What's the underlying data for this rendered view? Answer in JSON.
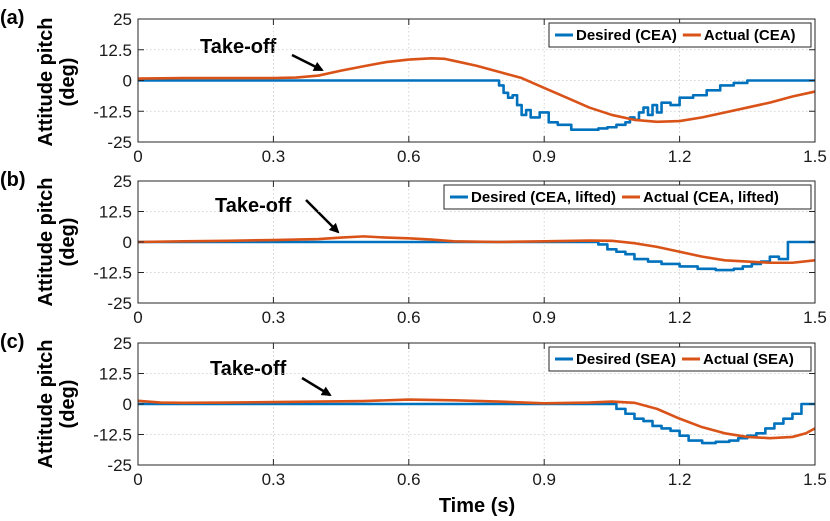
{
  "chart_data": [
    {
      "type": "line",
      "panel_label": "(a)",
      "annotation": "Take-off",
      "ylabel_line1": "Attitude pitch",
      "ylabel_line2": "(deg)",
      "xlabel": "",
      "xlim": [
        0,
        1.5
      ],
      "ylim": [
        -25,
        25
      ],
      "xticks": [
        "0",
        "0.3",
        "0.6",
        "0.9",
        "1.2",
        "1.5"
      ],
      "yticks": [
        "25",
        "12.5",
        "0",
        "-12.5",
        "-25"
      ],
      "grid": true,
      "legend_position": "top-right",
      "series": [
        {
          "name": "Desired (CEA)",
          "color": "#0072BD",
          "style": "step",
          "x": [
            0,
            0.78,
            0.8,
            0.81,
            0.82,
            0.83,
            0.84,
            0.85,
            0.86,
            0.87,
            0.89,
            0.91,
            0.93,
            0.96,
            1.02,
            1.04,
            1.06,
            1.08,
            1.09,
            1.1,
            1.11,
            1.12,
            1.13,
            1.14,
            1.15,
            1.16,
            1.18,
            1.2,
            1.23,
            1.26,
            1.29,
            1.32,
            1.35,
            1.5
          ],
          "y": [
            0,
            0,
            -2,
            -5,
            -7,
            -6,
            -10,
            -14,
            -12,
            -15,
            -13,
            -17,
            -18,
            -20,
            -19.5,
            -19,
            -18,
            -17,
            -15,
            -16,
            -13,
            -11,
            -14,
            -10,
            -13,
            -9,
            -10,
            -7,
            -6,
            -4,
            -2,
            -1,
            0,
            0
          ]
        },
        {
          "name": "Actual (CEA)",
          "color": "#D95319",
          "x": [
            0,
            0.1,
            0.2,
            0.3,
            0.35,
            0.4,
            0.45,
            0.5,
            0.55,
            0.6,
            0.65,
            0.68,
            0.7,
            0.75,
            0.8,
            0.85,
            0.9,
            0.95,
            1.0,
            1.05,
            1.1,
            1.15,
            1.2,
            1.25,
            1.3,
            1.35,
            1.4,
            1.45,
            1.5
          ],
          "y": [
            0.8,
            1,
            1,
            1,
            1.2,
            2,
            4,
            5.8,
            7.5,
            8.5,
            9,
            8.8,
            8,
            6,
            3.5,
            1,
            -3,
            -7,
            -11,
            -14,
            -16,
            -16.8,
            -16.5,
            -15,
            -13,
            -11,
            -9,
            -6.5,
            -4.5
          ]
        }
      ]
    },
    {
      "type": "line",
      "panel_label": "(b)",
      "annotation": "Take-off",
      "ylabel_line1": "Attitude pitch",
      "ylabel_line2": "(deg)",
      "xlabel": "",
      "xlim": [
        0,
        1.5
      ],
      "ylim": [
        -25,
        25
      ],
      "xticks": [
        "0",
        "0.3",
        "0.6",
        "0.9",
        "1.2",
        "1.5"
      ],
      "yticks": [
        "25",
        "12.5",
        "0",
        "-12.5",
        "-25"
      ],
      "grid": true,
      "legend_position": "top-right",
      "series": [
        {
          "name": "Desired (CEA, lifted)",
          "color": "#0072BD",
          "style": "step",
          "x": [
            0,
            1.0,
            1.02,
            1.04,
            1.06,
            1.08,
            1.1,
            1.13,
            1.16,
            1.2,
            1.24,
            1.28,
            1.32,
            1.34,
            1.36,
            1.38,
            1.4,
            1.42,
            1.44,
            1.5
          ],
          "y": [
            0,
            0,
            -1,
            -3,
            -4,
            -5,
            -7,
            -8,
            -9,
            -10,
            -11,
            -11.5,
            -11,
            -10,
            -9,
            -8,
            -6,
            -7,
            0,
            0
          ]
        },
        {
          "name": "Actual (CEA, lifted)",
          "color": "#D95319",
          "x": [
            0,
            0.1,
            0.2,
            0.3,
            0.4,
            0.45,
            0.5,
            0.55,
            0.6,
            0.65,
            0.7,
            0.8,
            0.9,
            1.0,
            1.05,
            1.1,
            1.15,
            1.2,
            1.25,
            1.3,
            1.35,
            1.4,
            1.45,
            1.5
          ],
          "y": [
            0,
            0.3,
            0.5,
            0.8,
            1.2,
            1.8,
            2.3,
            1.8,
            1.5,
            1,
            0.3,
            0,
            0.3,
            0.6,
            0.5,
            -0.5,
            -2,
            -4,
            -6,
            -7.5,
            -8,
            -8.5,
            -8.5,
            -7.5
          ]
        }
      ]
    },
    {
      "type": "line",
      "panel_label": "(c)",
      "annotation": "Take-off",
      "ylabel_line1": "Attitude pitch",
      "ylabel_line2": "(deg)",
      "xlabel": "Time (s)",
      "xlim": [
        0,
        1.5
      ],
      "ylim": [
        -25,
        25
      ],
      "xticks": [
        "0",
        "0.3",
        "0.6",
        "0.9",
        "1.2",
        "1.5"
      ],
      "yticks": [
        "25",
        "12.5",
        "0",
        "-12.5",
        "-25"
      ],
      "grid": true,
      "legend_position": "top-right",
      "series": [
        {
          "name": "Desired (SEA)",
          "color": "#0072BD",
          "style": "step",
          "x": [
            0,
            1.04,
            1.06,
            1.08,
            1.1,
            1.12,
            1.14,
            1.16,
            1.18,
            1.2,
            1.22,
            1.25,
            1.28,
            1.31,
            1.33,
            1.35,
            1.37,
            1.39,
            1.41,
            1.43,
            1.45,
            1.47,
            1.5
          ],
          "y": [
            0,
            0,
            -2,
            -4,
            -6,
            -7,
            -9,
            -10,
            -11,
            -13,
            -15,
            -16,
            -15.5,
            -15,
            -14,
            -13,
            -12,
            -10,
            -8,
            -6,
            -4,
            0,
            0
          ]
        },
        {
          "name": "Actual (SEA)",
          "color": "#D95319",
          "x": [
            0,
            0.05,
            0.1,
            0.2,
            0.3,
            0.4,
            0.5,
            0.6,
            0.7,
            0.8,
            0.9,
            1.0,
            1.05,
            1.1,
            1.15,
            1.2,
            1.25,
            1.3,
            1.35,
            1.4,
            1.45,
            1.48,
            1.5
          ],
          "y": [
            1.3,
            0.6,
            0.5,
            0.6,
            0.8,
            1,
            1.2,
            1.8,
            1.5,
            1,
            0.3,
            0.6,
            1,
            0.5,
            -2,
            -6,
            -9.5,
            -12,
            -13.5,
            -14,
            -13.5,
            -12,
            -10
          ]
        }
      ]
    }
  ]
}
